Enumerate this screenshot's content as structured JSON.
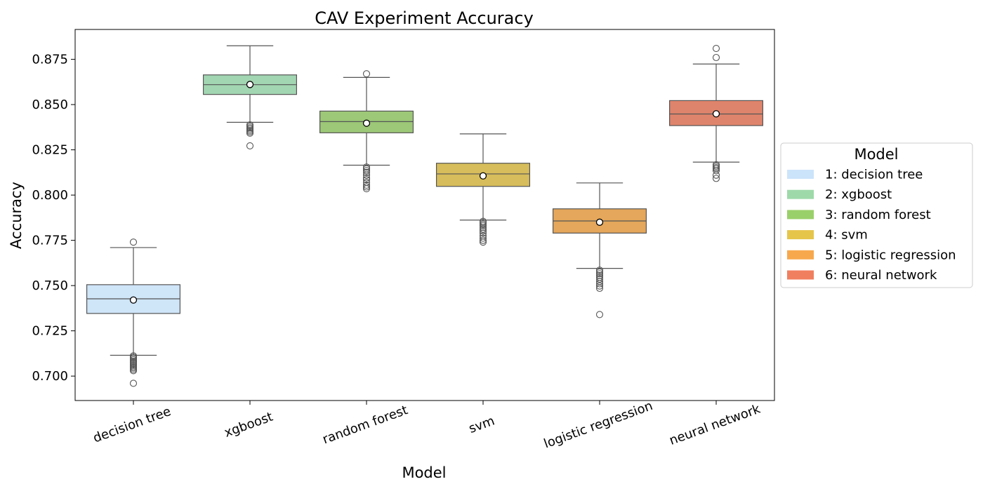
{
  "chart_data": {
    "type": "box",
    "title": "CAV Experiment Accuracy",
    "xlabel": "Model",
    "ylabel": "Accuracy",
    "ylim": [
      0.6865,
      0.8915
    ],
    "yticks": [
      0.7,
      0.725,
      0.75,
      0.775,
      0.8,
      0.825,
      0.85,
      0.875
    ],
    "ytick_labels": [
      "0.700",
      "0.725",
      "0.750",
      "0.775",
      "0.800",
      "0.825",
      "0.850",
      "0.875"
    ],
    "grid": false,
    "legend": {
      "title": "Model",
      "placement": "right-outside",
      "entries": [
        "1: decision tree",
        "2: xgboost",
        "3: random forest",
        "4: svm",
        "5: logistic regression",
        "6: neural network"
      ]
    },
    "categories": [
      "decision tree",
      "xgboost",
      "random forest",
      "svm",
      "logistic regression",
      "neural network"
    ],
    "series": [
      {
        "category": "decision tree",
        "color": "#cfe5f8",
        "legend_color": "#cce4fa",
        "whisker_low": 0.7115,
        "q1": 0.7346,
        "median": 0.7427,
        "q3": 0.7505,
        "whisker_high": 0.771,
        "mean": 0.742,
        "outliers": [
          0.774,
          0.7112,
          0.7105,
          0.7098,
          0.709,
          0.7082,
          0.7075,
          0.7068,
          0.706,
          0.7052,
          0.7045,
          0.7037,
          0.703,
          0.696
        ]
      },
      {
        "category": "xgboost",
        "color": "#a2d6b2",
        "legend_color": "#9ed9aa",
        "whisker_low": 0.8402,
        "q1": 0.8556,
        "median": 0.861,
        "q3": 0.8664,
        "whisker_high": 0.8825,
        "mean": 0.8611,
        "outliers": [
          0.8388,
          0.838,
          0.8372,
          0.8365,
          0.8357,
          0.835,
          0.8342,
          0.8272
        ]
      },
      {
        "category": "random forest",
        "color": "#9cc877",
        "legend_color": "#9ad06a",
        "whisker_low": 0.8165,
        "q1": 0.8344,
        "median": 0.8406,
        "q3": 0.8464,
        "whisker_high": 0.865,
        "mean": 0.8397,
        "outliers": [
          0.867,
          0.8155,
          0.8145,
          0.8135,
          0.8125,
          0.811,
          0.8095,
          0.8085,
          0.807,
          0.8055,
          0.8045,
          0.8035
        ]
      },
      {
        "category": "svm",
        "color": "#d7bd5b",
        "legend_color": "#e6c54b",
        "whisker_low": 0.7862,
        "q1": 0.8048,
        "median": 0.8117,
        "q3": 0.8176,
        "whisker_high": 0.8338,
        "mean": 0.8106,
        "outliers": [
          0.7855,
          0.7848,
          0.784,
          0.7832,
          0.7822,
          0.7812,
          0.7802,
          0.779,
          0.7775,
          0.7762,
          0.775,
          0.774
        ]
      },
      {
        "category": "logistic regression",
        "color": "#e5a75b",
        "legend_color": "#f7a84d",
        "whisker_low": 0.7595,
        "q1": 0.779,
        "median": 0.7857,
        "q3": 0.7924,
        "whisker_high": 0.8067,
        "mean": 0.785,
        "outliers": [
          0.7585,
          0.7575,
          0.7565,
          0.7555,
          0.7545,
          0.7535,
          0.7522,
          0.751,
          0.7498,
          0.7485,
          0.734
        ]
      },
      {
        "category": "neural network",
        "color": "#df846c",
        "legend_color": "#f07f60",
        "whisker_low": 0.8182,
        "q1": 0.8384,
        "median": 0.8448,
        "q3": 0.8522,
        "whisker_high": 0.8724,
        "mean": 0.8449,
        "outliers": [
          0.881,
          0.876,
          0.8168,
          0.816,
          0.8152,
          0.8145,
          0.8135,
          0.811,
          0.8092
        ]
      }
    ]
  }
}
